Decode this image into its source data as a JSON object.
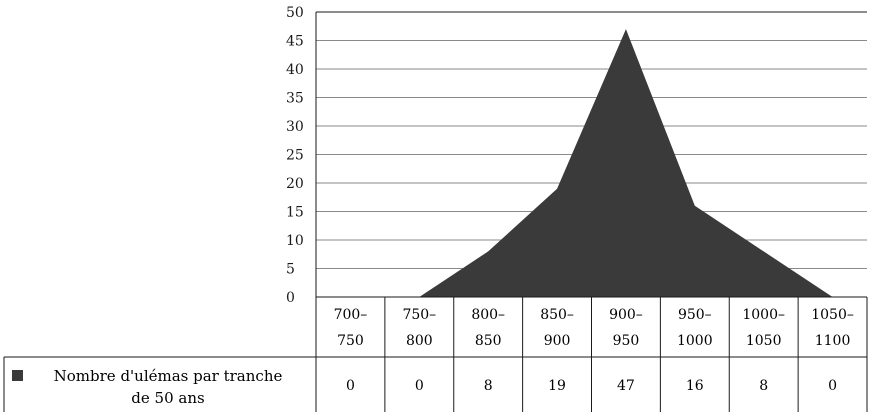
{
  "chart_data": {
    "type": "area",
    "categories": [
      [
        "700–",
        "750"
      ],
      [
        "750–",
        "800"
      ],
      [
        "800–",
        "850"
      ],
      [
        "850–",
        "900"
      ],
      [
        "900–",
        "950"
      ],
      [
        "950–",
        "1000"
      ],
      [
        "1000–",
        "1050"
      ],
      [
        "1050–",
        "1100"
      ]
    ],
    "series": [
      {
        "name": "Nombre d'ulémas par tranche de 50 ans",
        "name_lines": [
          "Nombre d'ulémas par tranche",
          "de 50 ans"
        ],
        "values": [
          0,
          0,
          8,
          19,
          47,
          16,
          8,
          0
        ]
      }
    ],
    "ylim": [
      0,
      50
    ],
    "yticks": [
      0,
      5,
      10,
      15,
      20,
      25,
      30,
      35,
      40,
      45,
      50
    ],
    "grid": true,
    "fill_color": "#3a3a3a",
    "legend_position": "bottom-left (data table)"
  }
}
